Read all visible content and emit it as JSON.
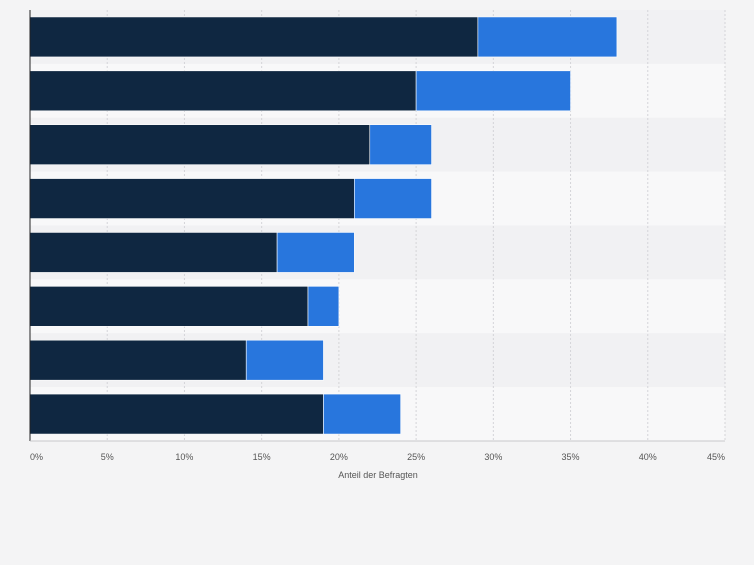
{
  "chart_data": {
    "type": "bar",
    "orientation": "horizontal",
    "stacked": true,
    "categories": [
      "",
      "",
      "",
      "",
      "",
      "",
      "",
      ""
    ],
    "series": [
      {
        "color": "#0f2741",
        "values": [
          29,
          25,
          22,
          21,
          16,
          18,
          14,
          19
        ]
      },
      {
        "color": "#2876dd",
        "values": [
          9,
          10,
          4,
          5,
          5,
          2,
          5,
          5
        ]
      }
    ],
    "xlabel": "Anteil der Befragten",
    "ylabel": "",
    "xlim": [
      0,
      45
    ],
    "x_ticks": [
      0,
      5,
      10,
      15,
      20,
      25,
      30,
      35,
      40,
      45
    ],
    "x_tick_labels": [
      "0%",
      "5%",
      "10%",
      "15%",
      "20%",
      "25%",
      "30%",
      "35%",
      "40%",
      "45%"
    ],
    "grid": true,
    "legend": "none"
  }
}
